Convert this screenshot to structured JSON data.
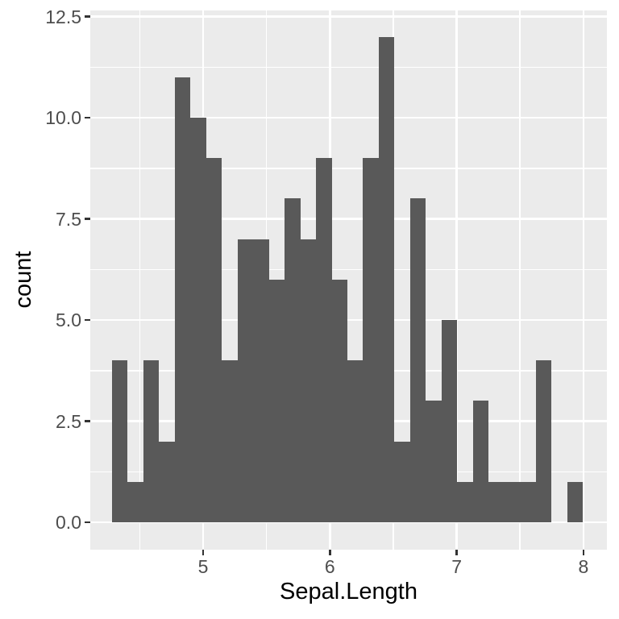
{
  "chart_data": {
    "type": "bar",
    "subtype": "histogram",
    "title": "",
    "xlabel": "Sepal.Length",
    "ylabel": "count",
    "bin_start": 4.2817,
    "bin_width": 0.12376,
    "counts": [
      4,
      1,
      4,
      2,
      11,
      10,
      9,
      4,
      7,
      7,
      6,
      8,
      7,
      9,
      6,
      4,
      9,
      12,
      2,
      8,
      3,
      5,
      1,
      3,
      1,
      1,
      1,
      4,
      0,
      1
    ],
    "x_tick_values": [
      5,
      6,
      7,
      8
    ],
    "x_tick_labels": [
      "5",
      "6",
      "7",
      "8"
    ],
    "x_minor_ticks": [
      4.5,
      5.5,
      6.5,
      7.5
    ],
    "y_tick_values": [
      0,
      2.5,
      5,
      7.5,
      10,
      12.5
    ],
    "y_tick_labels": [
      "0.0",
      "2.5",
      "5.0",
      "7.5",
      "10.0",
      "12.5"
    ],
    "y_minor_ticks": [
      1.25,
      3.75,
      6.25,
      8.75,
      11.25
    ],
    "xlim": [
      4.11,
      8.185
    ],
    "ylim": [
      -0.677,
      12.652
    ],
    "grid": true,
    "legend": "none",
    "colors": {
      "figure_background": "#FFFFFF",
      "panel_background": "#EBEBEB",
      "bar_fill": "#595959",
      "gridline": "#FFFFFF",
      "tick_mark": "#333333",
      "tick_label": "#4D4D4D",
      "axis_title": "#000000"
    }
  }
}
